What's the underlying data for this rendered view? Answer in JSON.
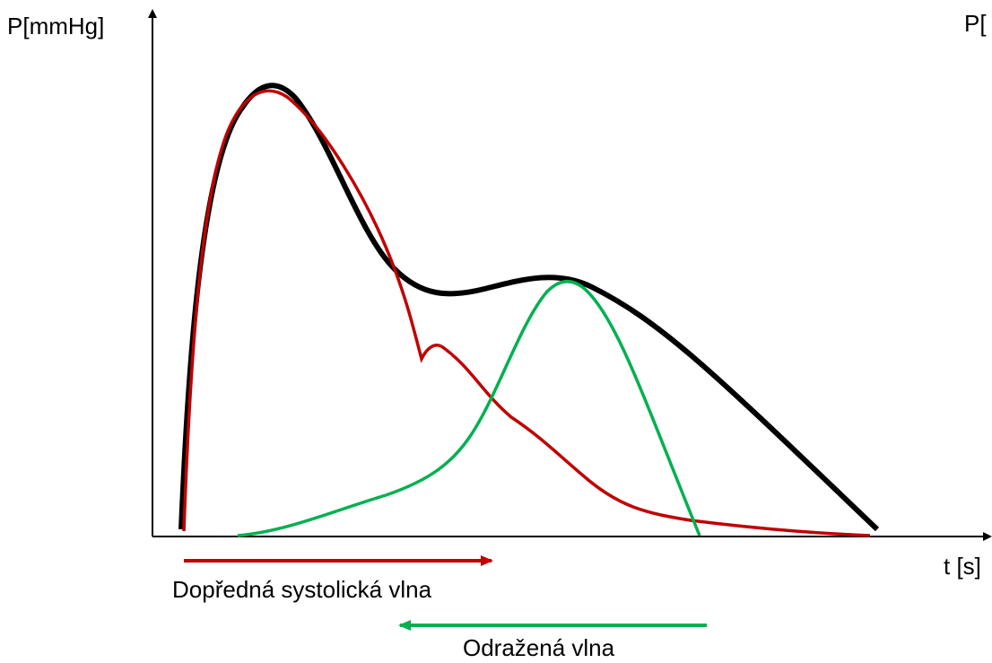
{
  "axes": {
    "y_label": "P[mmHg]",
    "y2_label": "P[",
    "x_label": "t [s]"
  },
  "arrows": {
    "forward": "Dopředná systolická vlna",
    "reflected": "Odražená vlna"
  }
}
